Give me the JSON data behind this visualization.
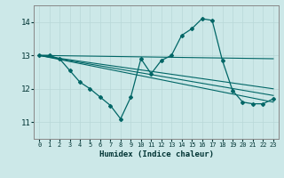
{
  "xlabel": "Humidex (Indice chaleur)",
  "background_color": "#cce8e8",
  "grid_color": "#b8d8d8",
  "line_color": "#006666",
  "xlim": [
    -0.5,
    23.5
  ],
  "ylim": [
    10.5,
    14.5
  ],
  "yticks": [
    11,
    12,
    13,
    14
  ],
  "xticks": [
    0,
    1,
    2,
    3,
    4,
    5,
    6,
    7,
    8,
    9,
    10,
    11,
    12,
    13,
    14,
    15,
    16,
    17,
    18,
    19,
    20,
    21,
    22,
    23
  ],
  "series1_x": [
    0,
    1,
    2,
    3,
    4,
    5,
    6,
    7,
    8,
    9,
    10,
    11,
    12,
    13,
    14,
    15,
    16,
    17,
    18,
    19,
    20,
    21,
    22,
    23
  ],
  "series1_y": [
    13.0,
    13.0,
    12.9,
    12.55,
    12.2,
    12.0,
    11.75,
    11.5,
    11.1,
    11.75,
    12.9,
    12.45,
    12.85,
    13.0,
    13.6,
    13.8,
    14.1,
    14.05,
    12.85,
    11.95,
    11.6,
    11.55,
    11.55,
    11.7
  ],
  "series2_x": [
    0,
    23
  ],
  "series2_y": [
    13.0,
    11.6
  ],
  "series3_x": [
    0,
    23
  ],
  "series3_y": [
    13.0,
    11.8
  ],
  "series4_x": [
    0,
    23
  ],
  "series4_y": [
    13.0,
    12.0
  ],
  "series5_x": [
    0,
    23
  ],
  "series5_y": [
    13.0,
    12.9
  ]
}
